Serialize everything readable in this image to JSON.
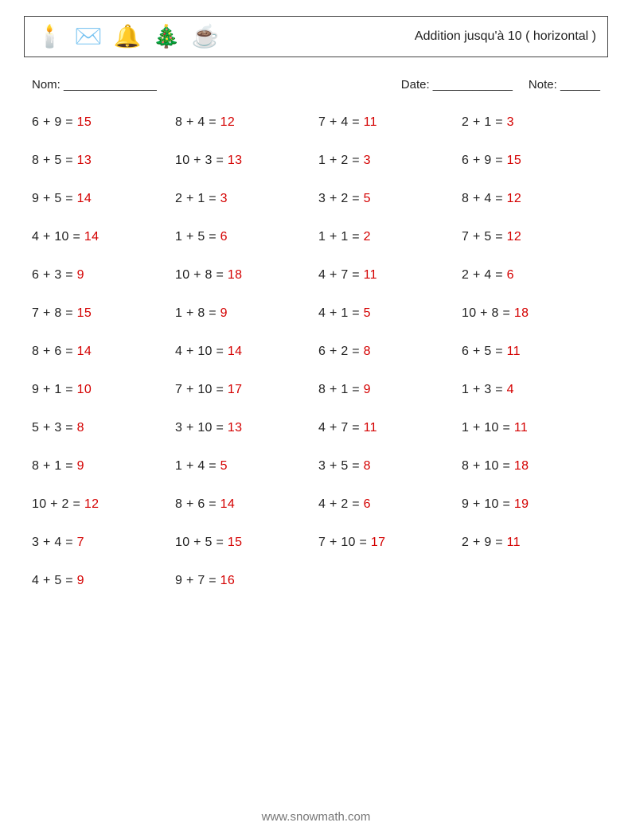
{
  "colors": {
    "answer": "#d40000",
    "text": "#222222",
    "border": "#444444",
    "footer": "#777777"
  },
  "header": {
    "title": "Addition jusqu'à 10 ( horizontal )",
    "icons": [
      "🕯️",
      "✉️",
      "🔔",
      "🎄",
      "☕"
    ]
  },
  "labels": {
    "name": "Nom: ______________",
    "date": "Date: ____________",
    "note": "Note: ______"
  },
  "grid": {
    "columns": 4,
    "problems": [
      {
        "a": 6,
        "b": 9,
        "r": 15
      },
      {
        "a": 8,
        "b": 4,
        "r": 12
      },
      {
        "a": 7,
        "b": 4,
        "r": 11
      },
      {
        "a": 2,
        "b": 1,
        "r": 3
      },
      {
        "a": 8,
        "b": 5,
        "r": 13
      },
      {
        "a": 10,
        "b": 3,
        "r": 13
      },
      {
        "a": 1,
        "b": 2,
        "r": 3
      },
      {
        "a": 6,
        "b": 9,
        "r": 15
      },
      {
        "a": 9,
        "b": 5,
        "r": 14
      },
      {
        "a": 2,
        "b": 1,
        "r": 3
      },
      {
        "a": 3,
        "b": 2,
        "r": 5
      },
      {
        "a": 8,
        "b": 4,
        "r": 12
      },
      {
        "a": 4,
        "b": 10,
        "r": 14
      },
      {
        "a": 1,
        "b": 5,
        "r": 6
      },
      {
        "a": 1,
        "b": 1,
        "r": 2
      },
      {
        "a": 7,
        "b": 5,
        "r": 12
      },
      {
        "a": 6,
        "b": 3,
        "r": 9
      },
      {
        "a": 10,
        "b": 8,
        "r": 18
      },
      {
        "a": 4,
        "b": 7,
        "r": 11
      },
      {
        "a": 2,
        "b": 4,
        "r": 6
      },
      {
        "a": 7,
        "b": 8,
        "r": 15
      },
      {
        "a": 1,
        "b": 8,
        "r": 9
      },
      {
        "a": 4,
        "b": 1,
        "r": 5
      },
      {
        "a": 10,
        "b": 8,
        "r": 18
      },
      {
        "a": 8,
        "b": 6,
        "r": 14
      },
      {
        "a": 4,
        "b": 10,
        "r": 14
      },
      {
        "a": 6,
        "b": 2,
        "r": 8
      },
      {
        "a": 6,
        "b": 5,
        "r": 11
      },
      {
        "a": 9,
        "b": 1,
        "r": 10
      },
      {
        "a": 7,
        "b": 10,
        "r": 17
      },
      {
        "a": 8,
        "b": 1,
        "r": 9
      },
      {
        "a": 1,
        "b": 3,
        "r": 4
      },
      {
        "a": 5,
        "b": 3,
        "r": 8
      },
      {
        "a": 3,
        "b": 10,
        "r": 13
      },
      {
        "a": 4,
        "b": 7,
        "r": 11
      },
      {
        "a": 1,
        "b": 10,
        "r": 11
      },
      {
        "a": 8,
        "b": 1,
        "r": 9
      },
      {
        "a": 1,
        "b": 4,
        "r": 5
      },
      {
        "a": 3,
        "b": 5,
        "r": 8
      },
      {
        "a": 8,
        "b": 10,
        "r": 18
      },
      {
        "a": 10,
        "b": 2,
        "r": 12
      },
      {
        "a": 8,
        "b": 6,
        "r": 14
      },
      {
        "a": 4,
        "b": 2,
        "r": 6
      },
      {
        "a": 9,
        "b": 10,
        "r": 19
      },
      {
        "a": 3,
        "b": 4,
        "r": 7
      },
      {
        "a": 10,
        "b": 5,
        "r": 15
      },
      {
        "a": 7,
        "b": 10,
        "r": 17
      },
      {
        "a": 2,
        "b": 9,
        "r": 11
      },
      {
        "a": 4,
        "b": 5,
        "r": 9
      },
      {
        "a": 9,
        "b": 7,
        "r": 16
      }
    ]
  },
  "footer": "www.snowmath.com"
}
